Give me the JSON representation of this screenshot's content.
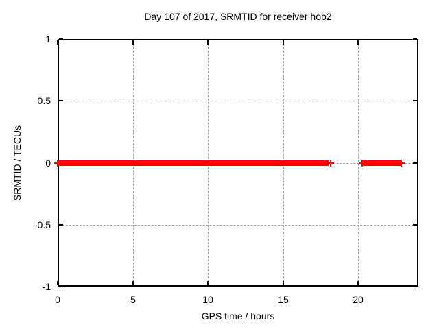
{
  "chart_data": {
    "type": "scatter",
    "title": "Day 107 of 2017, SRMTID for receiver hob2",
    "xlabel": "GPS time / hours",
    "ylabel": "SRMTID / TECUs",
    "xlim": [
      0,
      24
    ],
    "ylim": [
      -1,
      1
    ],
    "xticks": {
      "values": [
        0,
        5,
        10,
        15,
        20
      ],
      "labels": [
        "0",
        "5",
        "10",
        "15",
        "20"
      ]
    },
    "yticks": {
      "values": [
        1,
        0.5,
        0,
        -0.5,
        -1
      ],
      "labels": [
        "1",
        "0.5",
        "0",
        "-0.5",
        "-1"
      ]
    },
    "grid": true,
    "grid_color": "#a0a0a0",
    "border_color": "#000000",
    "background_color": "#ffffff",
    "legend": "none",
    "series": [
      {
        "name": "SRMTID",
        "color": "#ff0000",
        "marker": "plus",
        "style": "dense points forming thick band",
        "segments": [
          {
            "x_start": 0,
            "x_end": 18.0,
            "y": 0
          },
          {
            "x_start": 20.25,
            "x_end": 22.83,
            "y": 0
          }
        ],
        "isolated_points": [
          {
            "x": 0,
            "y": 0
          },
          {
            "x": 18.15,
            "y": 0
          },
          {
            "x": 20.25,
            "y": 0
          },
          {
            "x": 22.85,
            "y": 0
          }
        ]
      }
    ]
  }
}
